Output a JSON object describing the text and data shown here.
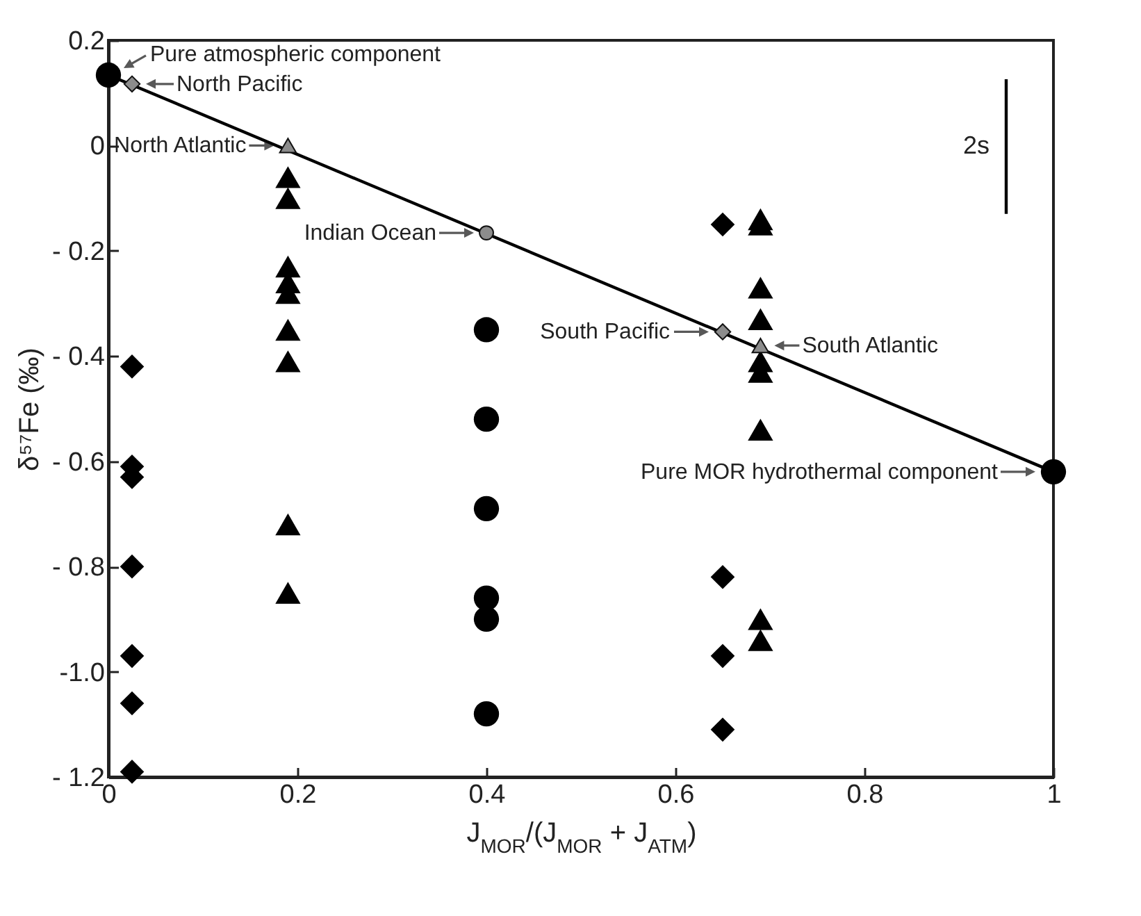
{
  "chart_data": {
    "type": "scatter",
    "xlabel": "J$_{MOR}$/(J$_{MOR}$ + J$_{ATM}$)",
    "ylabel": "δ⁵⁷Fe (‰)",
    "xlim": [
      0,
      1
    ],
    "ylim": [
      -1.2,
      0.2
    ],
    "xticks": [
      0,
      0.2,
      0.4,
      0.6,
      0.8,
      1
    ],
    "yticks": [
      0.2,
      0,
      {
        "value": -0.2,
        "label": "- 0.2"
      },
      {
        "value": -0.4,
        "label": "- 0.4"
      },
      {
        "value": -0.6,
        "label": "- 0.6"
      },
      {
        "value": -0.8,
        "label": "- 0.8"
      },
      {
        "value": -1.0,
        "label": "-1.0"
      },
      {
        "value": -1.2,
        "label": "- 1.2"
      }
    ],
    "grid": false,
    "series": [
      {
        "type": "line",
        "marker": "none",
        "color": "#000000",
        "x": [
          0,
          1
        ],
        "values": [
          0.134,
          -0.62
        ]
      },
      {
        "type": "line",
        "marker": "none",
        "name": "2s",
        "color": "#000000",
        "x": [
          0.95,
          0.95
        ],
        "values": [
          0.126,
          -0.13
        ]
      },
      {
        "type": "scatter",
        "marker": "diamond",
        "color": "#000000",
        "x": [
          0.025,
          0.025,
          0.025,
          0.025,
          0.025,
          0.025,
          0.025,
          0.65,
          0.65,
          0.65,
          0.65
        ],
        "values": [
          -0.42,
          -0.61,
          -0.63,
          -0.8,
          -0.97,
          -1.06,
          -1.19,
          -0.15,
          -0.82,
          -0.97,
          -1.11
        ]
      },
      {
        "type": "scatter",
        "marker": "triangle",
        "color": "#000000",
        "x": [
          0.19,
          0.19,
          0.19,
          0.19,
          0.19,
          0.19,
          0.19,
          0.19,
          0.19,
          0.69,
          0.69,
          0.69,
          0.69,
          0.69,
          0.69,
          0.69,
          0.69,
          0.69
        ],
        "values": [
          -0.06,
          -0.1,
          -0.23,
          -0.26,
          -0.28,
          -0.35,
          -0.41,
          -0.72,
          -0.85,
          -0.14,
          -0.15,
          -0.27,
          -0.33,
          -0.41,
          -0.43,
          -0.54,
          -0.9,
          -0.94
        ]
      },
      {
        "type": "scatter",
        "marker": "circle",
        "color": "#000000",
        "x": [
          0,
          0.4,
          0.4,
          0.4,
          0.4,
          0.4,
          0.4,
          1
        ],
        "values": [
          0.134,
          -0.35,
          -0.52,
          -0.69,
          -0.86,
          -0.9,
          -1.08,
          -0.62
        ]
      },
      {
        "type": "scatter",
        "marker": "diamond",
        "color": "#8c8c8c",
        "x": [
          0.025,
          0.65
        ],
        "values": [
          0.117,
          -0.354
        ]
      },
      {
        "type": "scatter",
        "marker": "triangle",
        "color": "#8c8c8c",
        "x": [
          0.19,
          0.69
        ],
        "values": [
          0.0,
          -0.38
        ]
      },
      {
        "type": "scatter",
        "marker": "circle",
        "color": "#8c8c8c",
        "x": [
          0.4
        ],
        "values": [
          -0.166
        ]
      }
    ],
    "annotations": [
      {
        "text": "Pure atmospheric component",
        "x": 0,
        "y": 0.134
      },
      {
        "text": "North Pacific",
        "x": 0.025,
        "y": 0.117
      },
      {
        "text": "North Atlantic",
        "x": 0.19,
        "y": 0.0
      },
      {
        "text": "Indian Ocean",
        "x": 0.4,
        "y": -0.166
      },
      {
        "text": "South Pacific",
        "x": 0.65,
        "y": -0.354
      },
      {
        "text": "South Atlantic",
        "x": 0.69,
        "y": -0.38
      },
      {
        "text": "Pure MOR hydrothermal component",
        "x": 1,
        "y": -0.62
      }
    ]
  }
}
